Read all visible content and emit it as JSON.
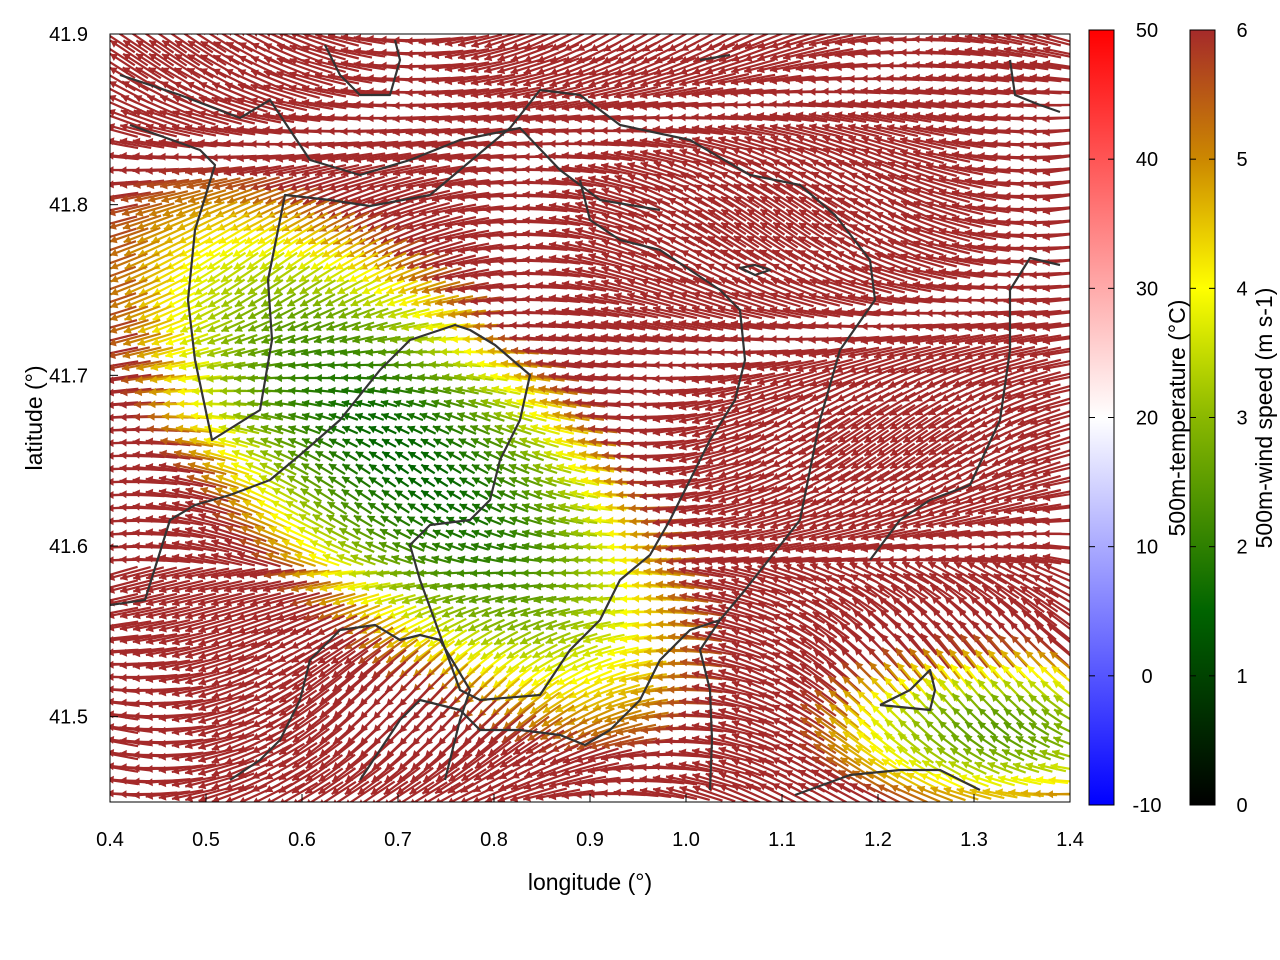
{
  "chart_data": {
    "type": "vector-field",
    "xlabel": "longitude (°)",
    "ylabel": "latitude (°)",
    "xlim": [
      0.4,
      1.4
    ],
    "ylim": [
      41.45,
      41.9
    ],
    "x_ticks": [
      "0.4",
      "0.5",
      "0.6",
      "0.7",
      "0.8",
      "0.9",
      "1.0",
      "1.1",
      "1.2",
      "1.3",
      "1.4"
    ],
    "y_ticks": [
      "41.5",
      "41.6",
      "41.7",
      "41.8",
      "41.9"
    ],
    "background_field": {
      "label": "500m-temperature (°C)",
      "range": [
        -10,
        50
      ],
      "ticks": [
        "-10",
        "0",
        "10",
        "20",
        "30",
        "40",
        "50"
      ],
      "colors": [
        "#0000ff",
        "#ffffff",
        "#ff0000"
      ]
    },
    "vector_color": {
      "label": "500m-wind speed (m s-1)",
      "range": [
        0,
        6
      ],
      "ticks": [
        "0",
        "1",
        "2",
        "3",
        "4",
        "5",
        "6"
      ],
      "colors": [
        "#000000",
        "#006400",
        "#8ab800",
        "#ffff00",
        "#cc8800",
        "#a52a2a"
      ]
    },
    "calm_area_center": [
      0.71,
      41.65
    ],
    "calm_area_speed": 1.5,
    "far_field_speed": 6,
    "prevailing_direction": "westward",
    "grid": false,
    "legend_position": "right"
  }
}
